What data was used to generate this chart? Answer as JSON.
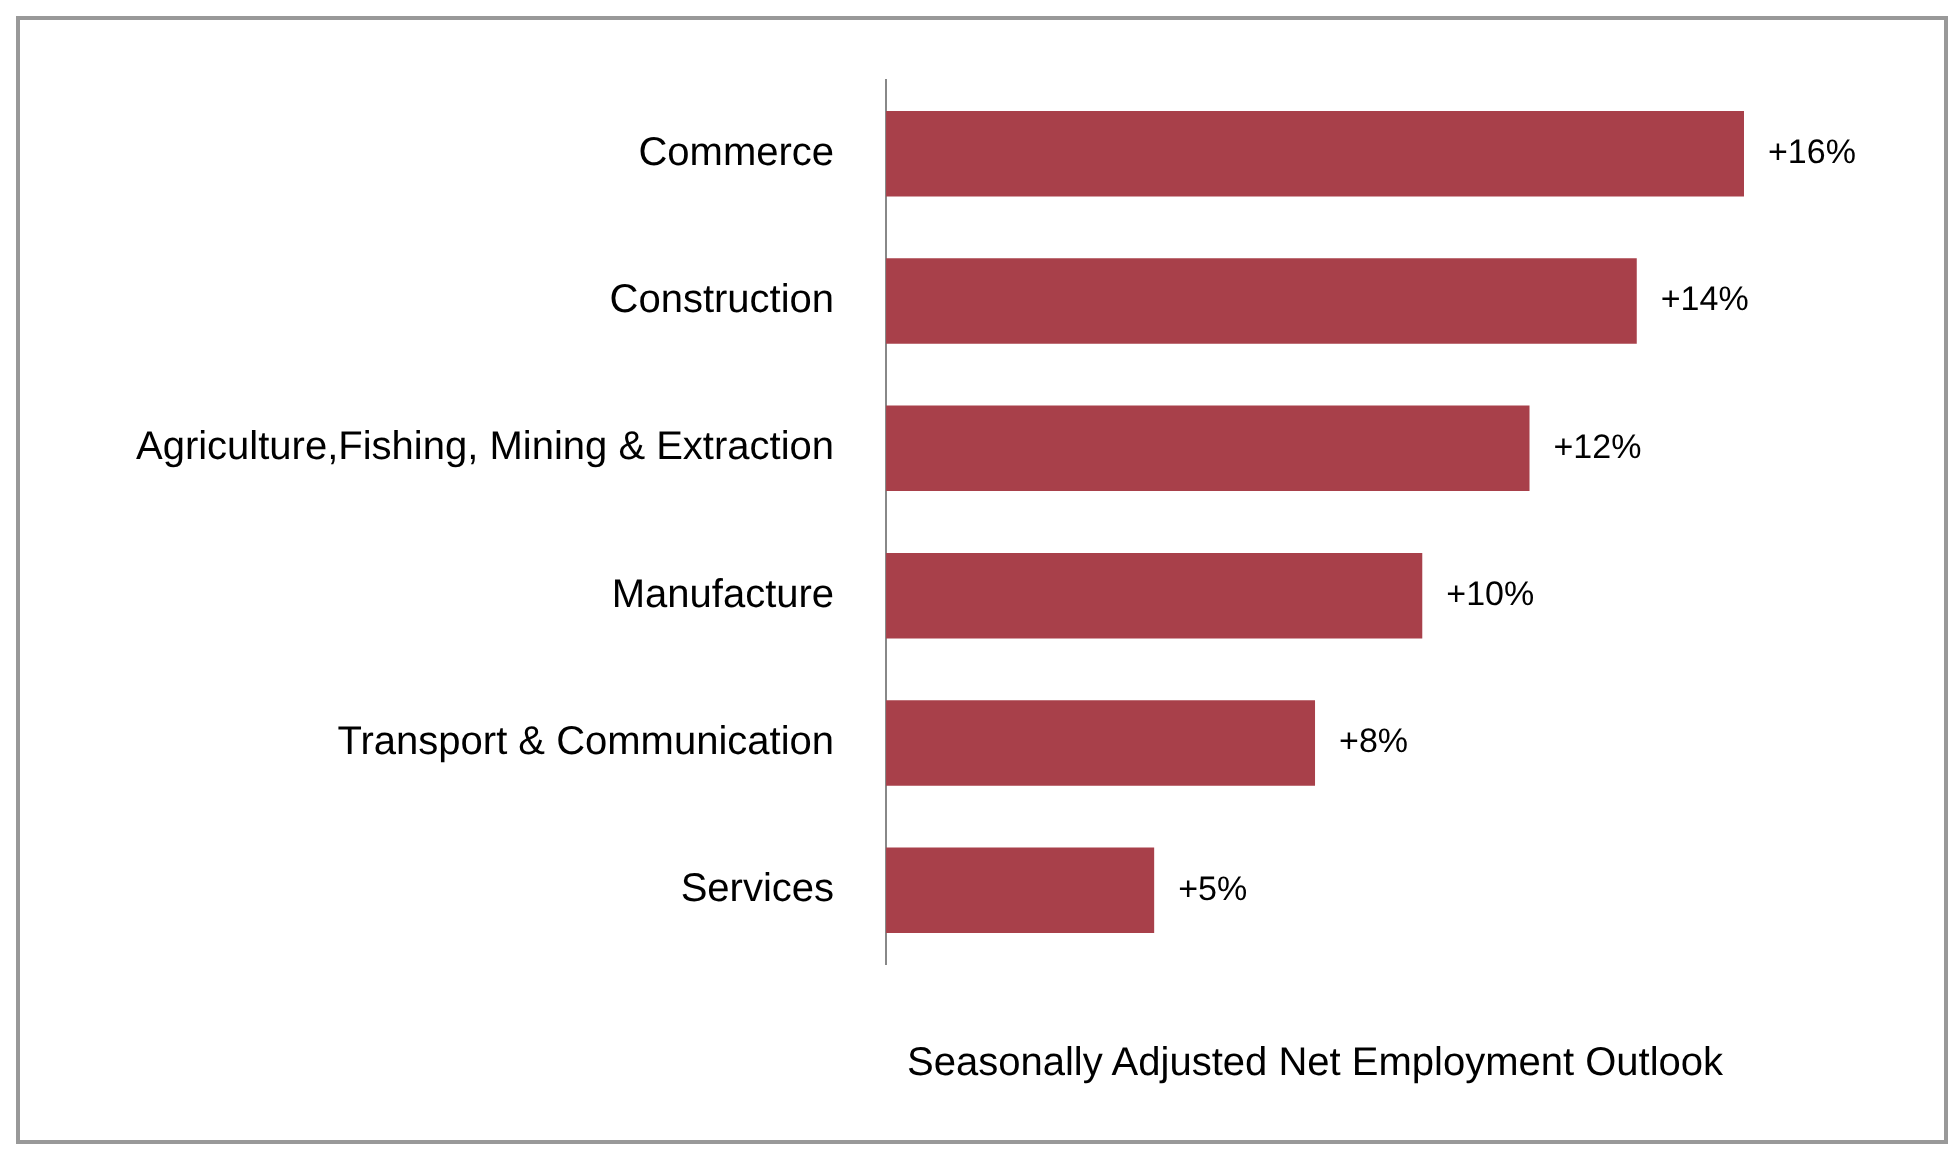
{
  "chart_data": {
    "type": "bar",
    "orientation": "horizontal",
    "xlabel": "Seasonally Adjusted Net Employment Outlook",
    "categories": [
      "Commerce",
      "Construction",
      "Agriculture,Fishing, Mining & Extraction",
      "Manufacture",
      "Transport & Communication",
      "Services"
    ],
    "values": [
      16,
      14,
      12,
      10,
      8,
      5
    ],
    "value_labels": [
      "+16%",
      "+14%",
      "+12%",
      "+10%",
      "+8%",
      "+5%"
    ],
    "color": "#a8404a",
    "grid": false,
    "legend": false
  }
}
